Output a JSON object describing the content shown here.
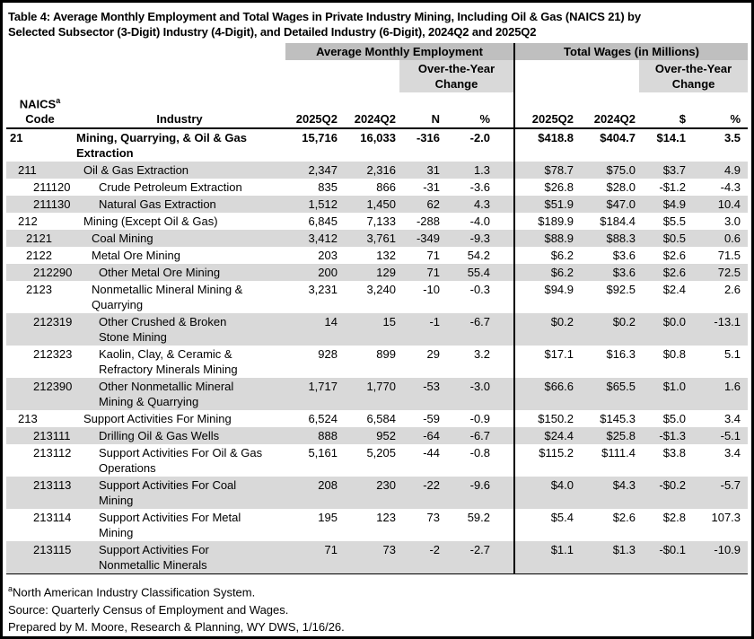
{
  "title": "Table 4: Average Monthly Employment and Total Wages in Private Industry Mining, Including Oil & Gas (NAICS 21) by\nSelected Subsector (3-Digit) Industry (4-Digit), and Detailed Industry (6-Digit), 2024Q2 and 2025Q2",
  "header": {
    "employment_group": "Average Monthly Employment",
    "wages_group": "Total Wages (in Millions)",
    "over_the_year_change": "Over-the-Year\nChange",
    "naics_label": "NAICS",
    "naics_superscript": "a",
    "code_label": "Code",
    "industry_label": "Industry",
    "emp_cols": {
      "q2025": "2025Q2",
      "q2024": "2024Q2",
      "n": "N",
      "pct": "%"
    },
    "wage_cols": {
      "q2025": "2025Q2",
      "q2024": "2024Q2",
      "dollar": "$",
      "pct": "%"
    }
  },
  "colors": {
    "group_header_bg": "#bfbfbf",
    "subheader_bg": "#d9d9d9",
    "row_stripe_bg": "#d9d9d9",
    "border": "#000000"
  },
  "rows": [
    {
      "code": "21",
      "industry": "Mining, Quarrying, & Oil & Gas\nExtraction",
      "level": 0,
      "bold": true,
      "shaded": false,
      "emp_2025q2": "15,716",
      "emp_2024q2": "16,033",
      "emp_n": "-316",
      "emp_pct": "-2.0",
      "wage_2025q2": "$418.8",
      "wage_2024q2": "$404.7",
      "wage_d": "$14.1",
      "wage_pct": "3.5"
    },
    {
      "code": "211",
      "industry": "Oil & Gas Extraction",
      "level": 1,
      "bold": false,
      "shaded": true,
      "emp_2025q2": "2,347",
      "emp_2024q2": "2,316",
      "emp_n": "31",
      "emp_pct": "1.3",
      "wage_2025q2": "$78.7",
      "wage_2024q2": "$75.0",
      "wage_d": "$3.7",
      "wage_pct": "4.9"
    },
    {
      "code": "211120",
      "industry": "Crude Petroleum Extraction",
      "level": 3,
      "bold": false,
      "shaded": false,
      "emp_2025q2": "835",
      "emp_2024q2": "866",
      "emp_n": "-31",
      "emp_pct": "-3.6",
      "wage_2025q2": "$26.8",
      "wage_2024q2": "$28.0",
      "wage_d": "-$1.2",
      "wage_pct": "-4.3"
    },
    {
      "code": "211130",
      "industry": "Natural Gas Extraction",
      "level": 3,
      "bold": false,
      "shaded": true,
      "emp_2025q2": "1,512",
      "emp_2024q2": "1,450",
      "emp_n": "62",
      "emp_pct": "4.3",
      "wage_2025q2": "$51.9",
      "wage_2024q2": "$47.0",
      "wage_d": "$4.9",
      "wage_pct": "10.4"
    },
    {
      "code": "212",
      "industry": "Mining (Except Oil & Gas)",
      "level": 1,
      "bold": false,
      "shaded": false,
      "emp_2025q2": "6,845",
      "emp_2024q2": "7,133",
      "emp_n": "-288",
      "emp_pct": "-4.0",
      "wage_2025q2": "$189.9",
      "wage_2024q2": "$184.4",
      "wage_d": "$5.5",
      "wage_pct": "3.0"
    },
    {
      "code": "2121",
      "industry": "Coal Mining",
      "level": 2,
      "bold": false,
      "shaded": true,
      "emp_2025q2": "3,412",
      "emp_2024q2": "3,761",
      "emp_n": "-349",
      "emp_pct": "-9.3",
      "wage_2025q2": "$88.9",
      "wage_2024q2": "$88.3",
      "wage_d": "$0.5",
      "wage_pct": "0.6"
    },
    {
      "code": "2122",
      "industry": "Metal Ore Mining",
      "level": 2,
      "bold": false,
      "shaded": false,
      "emp_2025q2": "203",
      "emp_2024q2": "132",
      "emp_n": "71",
      "emp_pct": "54.2",
      "wage_2025q2": "$6.2",
      "wage_2024q2": "$3.6",
      "wage_d": "$2.6",
      "wage_pct": "71.5"
    },
    {
      "code": "212290",
      "industry": "Other Metal Ore Mining",
      "level": 3,
      "bold": false,
      "shaded": true,
      "emp_2025q2": "200",
      "emp_2024q2": "129",
      "emp_n": "71",
      "emp_pct": "55.4",
      "wage_2025q2": "$6.2",
      "wage_2024q2": "$3.6",
      "wage_d": "$2.6",
      "wage_pct": "72.5"
    },
    {
      "code": "2123",
      "industry": "Nonmetallic Mineral Mining &\nQuarrying",
      "level": 2,
      "bold": false,
      "shaded": false,
      "emp_2025q2": "3,231",
      "emp_2024q2": "3,240",
      "emp_n": "-10",
      "emp_pct": "-0.3",
      "wage_2025q2": "$94.9",
      "wage_2024q2": "$92.5",
      "wage_d": "$2.4",
      "wage_pct": "2.6"
    },
    {
      "code": "212319",
      "industry": "Other Crushed & Broken\nStone Mining",
      "level": 3,
      "bold": false,
      "shaded": true,
      "emp_2025q2": "14",
      "emp_2024q2": "15",
      "emp_n": "-1",
      "emp_pct": "-6.7",
      "wage_2025q2": "$0.2",
      "wage_2024q2": "$0.2",
      "wage_d": "$0.0",
      "wage_pct": "-13.1"
    },
    {
      "code": "212323",
      "industry": "Kaolin, Clay, & Ceramic &\nRefractory Minerals Mining",
      "level": 3,
      "bold": false,
      "shaded": false,
      "emp_2025q2": "928",
      "emp_2024q2": "899",
      "emp_n": "29",
      "emp_pct": "3.2",
      "wage_2025q2": "$17.1",
      "wage_2024q2": "$16.3",
      "wage_d": "$0.8",
      "wage_pct": "5.1"
    },
    {
      "code": "212390",
      "industry": "Other Nonmetallic Mineral\nMining & Quarrying",
      "level": 3,
      "bold": false,
      "shaded": true,
      "emp_2025q2": "1,717",
      "emp_2024q2": "1,770",
      "emp_n": "-53",
      "emp_pct": "-3.0",
      "wage_2025q2": "$66.6",
      "wage_2024q2": "$65.5",
      "wage_d": "$1.0",
      "wage_pct": "1.6"
    },
    {
      "code": "213",
      "industry": "Support Activities For Mining",
      "level": 1,
      "bold": false,
      "shaded": false,
      "emp_2025q2": "6,524",
      "emp_2024q2": "6,584",
      "emp_n": "-59",
      "emp_pct": "-0.9",
      "wage_2025q2": "$150.2",
      "wage_2024q2": "$145.3",
      "wage_d": "$5.0",
      "wage_pct": "3.4"
    },
    {
      "code": "213111",
      "industry": "Drilling Oil & Gas Wells",
      "level": 3,
      "bold": false,
      "shaded": true,
      "emp_2025q2": "888",
      "emp_2024q2": "952",
      "emp_n": "-64",
      "emp_pct": "-6.7",
      "wage_2025q2": "$24.4",
      "wage_2024q2": "$25.8",
      "wage_d": "-$1.3",
      "wage_pct": "-5.1"
    },
    {
      "code": "213112",
      "industry": "Support Activities For Oil & Gas\nOperations",
      "level": 3,
      "bold": false,
      "shaded": false,
      "emp_2025q2": "5,161",
      "emp_2024q2": "5,205",
      "emp_n": "-44",
      "emp_pct": "-0.8",
      "wage_2025q2": "$115.2",
      "wage_2024q2": "$111.4",
      "wage_d": "$3.8",
      "wage_pct": "3.4"
    },
    {
      "code": "213113",
      "industry": "Support Activities For Coal\nMining",
      "level": 3,
      "bold": false,
      "shaded": true,
      "emp_2025q2": "208",
      "emp_2024q2": "230",
      "emp_n": "-22",
      "emp_pct": "-9.6",
      "wage_2025q2": "$4.0",
      "wage_2024q2": "$4.3",
      "wage_d": "-$0.2",
      "wage_pct": "-5.7"
    },
    {
      "code": "213114",
      "industry": "Support Activities For Metal\nMining",
      "level": 3,
      "bold": false,
      "shaded": false,
      "emp_2025q2": "195",
      "emp_2024q2": "123",
      "emp_n": "73",
      "emp_pct": "59.2",
      "wage_2025q2": "$5.4",
      "wage_2024q2": "$2.6",
      "wage_d": "$2.8",
      "wage_pct": "107.3"
    },
    {
      "code": "213115",
      "industry": "Support Activities For\nNonmetallic Minerals",
      "level": 3,
      "bold": false,
      "shaded": true,
      "emp_2025q2": "71",
      "emp_2024q2": "73",
      "emp_n": "-2",
      "emp_pct": "-2.7",
      "wage_2025q2": "$1.1",
      "wage_2024q2": "$1.3",
      "wage_d": "-$0.1",
      "wage_pct": "-10.9"
    }
  ],
  "footnotes": {
    "naics_sup": "a",
    "naics_text": "North American Industry Classification System.",
    "source": "Source: Quarterly Census of Employment and Wages.",
    "prepared": "Prepared by M. Moore, Research & Planning, WY DWS, 1/16/26."
  }
}
